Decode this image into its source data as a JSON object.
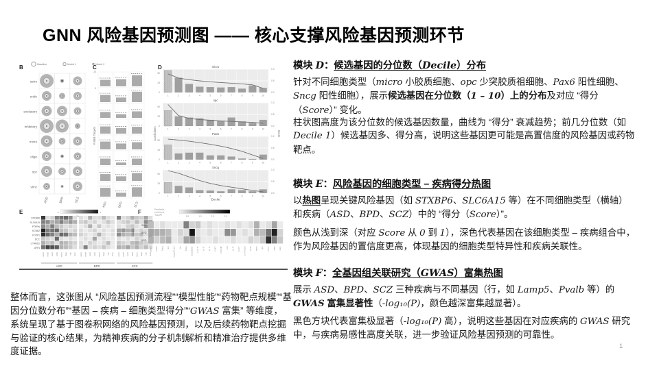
{
  "slide": {
    "title": "GNN 风险基因预测图 —— 核心支撑风险基因预测环节",
    "page_number": "1"
  },
  "modules": {
    "d": {
      "header": [
        {
          "t": "模块 "
        },
        {
          "t": "D",
          "i": true
        },
        {
          "t": "："
        },
        {
          "t": "候选基因的分位数（",
          "u": true
        },
        {
          "t": "Decile",
          "u": true,
          "i": true
        },
        {
          "t": "）分布",
          "u": true
        }
      ],
      "p1": [
        {
          "t": "针对不同细胞类型（"
        },
        {
          "t": "micro",
          "i": true
        },
        {
          "t": " 小胶质细胞、"
        },
        {
          "t": "opc",
          "i": true
        },
        {
          "t": " 少突胶质祖细胞、"
        },
        {
          "t": "Pax6",
          "i": true
        },
        {
          "t": " 阳性细胞、"
        },
        {
          "t": "Sncg",
          "i": true
        },
        {
          "t": " 阳性细胞），展示"
        },
        {
          "t": "候选基因在分位数（",
          "b": true
        },
        {
          "t": "1 – 10",
          "b": true,
          "i": true
        },
        {
          "t": "）上的分布",
          "b": true
        },
        {
          "t": "及对应 “得分（"
        },
        {
          "t": "Score",
          "i": true
        },
        {
          "t": "）” 变化。"
        }
      ],
      "p2": [
        {
          "t": "柱状图高度为该分位数的候选基因数量，曲线为 “得分” 衰减趋势；前几分位数（如 "
        },
        {
          "t": "Decile 1",
          "i": true
        },
        {
          "t": "）候选基因多、得分高，说明这些基因更可能是高置信度的风险基因或药物靶点。"
        }
      ]
    },
    "e": {
      "header": [
        {
          "t": "模块 "
        },
        {
          "t": "E",
          "i": true
        },
        {
          "t": "："
        },
        {
          "t": "风险基因的细胞类型 – 疾病得分热图",
          "u": true
        }
      ],
      "p1": [
        {
          "t": "以"
        },
        {
          "t": "热图",
          "b": true,
          "u": true
        },
        {
          "t": "呈现关键风险基因（如 "
        },
        {
          "t": "STXBP6",
          "i": true
        },
        {
          "t": "、"
        },
        {
          "t": "SLC6A15",
          "i": true
        },
        {
          "t": " 等）在不同细胞类型（横轴）和疾病（"
        },
        {
          "t": "ASD",
          "i": true
        },
        {
          "t": "、"
        },
        {
          "t": "BPD",
          "i": true
        },
        {
          "t": "、"
        },
        {
          "t": "SCZ",
          "i": true
        },
        {
          "t": "）中的 “得分（"
        },
        {
          "t": "Score",
          "i": true
        },
        {
          "t": "）”。"
        }
      ],
      "p2": [
        {
          "t": "颜色从浅到深（对应 "
        },
        {
          "t": "Score",
          "i": true
        },
        {
          "t": " 从 "
        },
        {
          "t": "0",
          "i": true
        },
        {
          "t": " 到 "
        },
        {
          "t": "1",
          "i": true
        },
        {
          "t": "），深色代表基因在该细胞类型 – 疾病组合中，作为风险基因的置信度更高，体现基因的细胞类型特异性和疾病关联性。"
        }
      ]
    },
    "f": {
      "header": [
        {
          "t": "模块 "
        },
        {
          "t": "F",
          "i": true
        },
        {
          "t": "："
        },
        {
          "t": "全基因组关联研究（",
          "u": true
        },
        {
          "t": "GWAS",
          "u": true,
          "i": true
        },
        {
          "t": "）富集热图",
          "u": true
        }
      ],
      "p1": [
        {
          "t": "展示 "
        },
        {
          "t": "ASD",
          "i": true
        },
        {
          "t": "、"
        },
        {
          "t": "BPD",
          "i": true
        },
        {
          "t": "、"
        },
        {
          "t": "SCZ",
          "i": true
        },
        {
          "t": " 三种疾病与不同基因（行，如 "
        },
        {
          "t": "Lamp5",
          "i": true
        },
        {
          "t": "、"
        },
        {
          "t": "Pvalb",
          "i": true
        },
        {
          "t": " 等）的 "
        },
        {
          "t": "GWAS",
          "b": true,
          "i": true
        },
        {
          "t": " 富集显著性",
          "b": true
        },
        {
          "t": "（"
        },
        {
          "t": "-log₁₀(P)",
          "i": true
        },
        {
          "t": "，颜色越深富集越显著）。"
        }
      ],
      "p2": [
        {
          "t": "黑色方块代表富集极显著（"
        },
        {
          "t": "-log₁₀(P)",
          "i": true
        },
        {
          "t": " 高），说明这些基因在对应疾病的 "
        },
        {
          "t": "GWAS",
          "i": true
        },
        {
          "t": " 研究中，与疾病易感性高度关联，进一步验证风险基因预测的可靠性。"
        }
      ]
    }
  },
  "summary": [
    {
      "t": "整体而言，这张图从 “风险基因预测流程”“模型性能”“药物靶点规模”“基因分位数分布”“基因 – 疾病 – 细胞类型得分”“"
    },
    {
      "t": "GWAS",
      "i": true
    },
    {
      "t": " 富集” 等维度，系统呈现了基于图卷积网络的风险基因预测，以及后续药物靶点挖掘与验证的核心结果，为精神疾病的分子机制解析和精准治疗提供多维度证据。"
    }
  ],
  "figure": {
    "panel_b": {
      "label": "B",
      "legend": [
        {
          "name": "Baseline",
          "r": 3.2
        },
        {
          "name": "Model 1",
          "r": 2.2
        },
        {
          "name": "Model 2",
          "r": 1.2
        }
      ],
      "rows": [
        "astro",
        "endo",
        "excitatory",
        "inhibitory",
        "micro",
        "oligo",
        "opc",
        "vlmc"
      ],
      "cols": [
        "ASD",
        "BPD",
        "SCZ"
      ],
      "radii": [
        [
          10,
          2.8,
          6.5
        ],
        [
          7,
          4.5,
          6
        ],
        [
          7.5,
          7.5,
          5.5
        ],
        [
          10,
          9.5,
          4
        ],
        [
          8.5,
          5,
          6.5
        ],
        [
          7,
          2.5,
          5.5
        ],
        [
          8,
          5.5,
          7
        ],
        [
          5,
          2,
          7
        ]
      ]
    },
    "panel_c": {
      "label": "C",
      "ylabel": "# BBB Targets",
      "yticks": [
        "20",
        "0"
      ],
      "cols": [
        "ASD",
        "BPD",
        "SCZ"
      ],
      "bars": [
        [
          0.5,
          0.55,
          0.85
        ],
        [
          0.55,
          0.35,
          0.8
        ],
        [
          0.45,
          0.28,
          0.5
        ],
        [
          0.55,
          0.42,
          0.52
        ],
        [
          0.6,
          0.45,
          0.55
        ],
        [
          0.5,
          0.2,
          0.5
        ],
        [
          0.52,
          0.35,
          0.6
        ],
        [
          0.68,
          0.3,
          0.72
        ]
      ]
    },
    "panel_d": {
      "label": "D",
      "xlabel": "Decile",
      "ylabel_left": "Candidates",
      "ylabel_right": "Score",
      "xticks": [
        "1",
        "2",
        "3",
        "4",
        "5",
        "6",
        "7",
        "8",
        "9",
        "10"
      ],
      "yticks_left": [
        "50",
        "25",
        "0"
      ],
      "yticks_right": [
        "1.0",
        "0.5",
        "0.0"
      ],
      "subplots": [
        {
          "title": "micro",
          "candidates": [
            57,
            38,
            22,
            15,
            14,
            13,
            14,
            10,
            18,
            12
          ],
          "score": [
            0.8,
            0.62,
            0.55,
            0.5,
            0.46,
            0.43,
            0.4,
            0.37,
            0.33,
            0.18
          ]
        },
        {
          "title": "opc",
          "candidates": [
            40,
            25,
            22,
            20,
            16,
            13,
            22,
            12,
            8,
            16
          ],
          "score": [
            0.93,
            0.45,
            0.33,
            0.28,
            0.25,
            0.22,
            0.2,
            0.18,
            0.16,
            0.12
          ]
        },
        {
          "title": "Pax6",
          "candidates": [
            38,
            16,
            18,
            18,
            11,
            11,
            8,
            3,
            2,
            13
          ],
          "score": [
            0.88,
            0.84,
            0.79,
            0.73,
            0.66,
            0.58,
            0.48,
            0.36,
            0.2,
            0.05
          ]
        },
        {
          "title": "Sncg",
          "candidates": [
            28,
            19,
            15,
            8,
            7,
            5,
            10,
            8,
            5,
            10
          ],
          "score": [
            0.97,
            0.86,
            0.7,
            0.54,
            0.42,
            0.33,
            0.26,
            0.19,
            0.12,
            0.06
          ]
        }
      ]
    },
    "panel_e": {
      "label": "E",
      "colorbar": {
        "label": "Score",
        "min": "0",
        "max": "1"
      },
      "genes": [
        "STXBP6",
        "SLC6A15",
        "PTPRN",
        "KCNB2",
        "FOXP1",
        "DCC",
        "CTNND2",
        "AFF4"
      ],
      "groups": [
        "ASD",
        "BPD",
        "SCZ"
      ],
      "celltypes": [
        "astro",
        "endo",
        "excit",
        "inhib",
        "micro",
        "oligo",
        "opc",
        "vlmc"
      ],
      "values": [
        [
          0.8,
          0.1,
          0.15,
          0.5,
          0.55,
          0.6,
          0.45,
          0.1,
          0.1,
          0.05,
          0.3,
          0.1,
          0.1,
          0.25,
          0.1,
          0.05,
          0.5,
          0.1,
          0.15,
          0.3,
          0.2,
          0.15,
          0.35,
          0.1
        ],
        [
          0.5,
          0.45,
          0.3,
          0.35,
          0.5,
          0.3,
          0.4,
          0.3,
          0.15,
          0.2,
          0.1,
          0.15,
          0.05,
          0.1,
          0.2,
          0.1,
          0.1,
          0.15,
          0.2,
          0.1,
          0.25,
          0.1,
          0.45,
          0.35
        ],
        [
          0.45,
          0.3,
          0.5,
          0.25,
          0.2,
          0.1,
          0.15,
          0.1,
          0.05,
          0.1,
          0.3,
          0.05,
          0.2,
          0.05,
          0.1,
          0.05,
          0.1,
          0.05,
          0.15,
          0.2,
          0.1,
          0.05,
          0.4,
          0.3
        ],
        [
          0.9,
          0.5,
          0.55,
          0.6,
          0.25,
          0.2,
          0.1,
          0.15,
          0.1,
          0.05,
          0.1,
          0.15,
          0.05,
          0.1,
          0.05,
          0.1,
          0.35,
          0.4,
          0.3,
          0.35,
          0.1,
          0.15,
          0.1,
          0.05
        ],
        [
          0.85,
          0.6,
          0.5,
          0.3,
          0.6,
          0.55,
          0.3,
          0.25,
          0.15,
          0.1,
          0.05,
          0.1,
          0.3,
          0.1,
          0.05,
          0.1,
          0.45,
          0.3,
          0.25,
          0.3,
          0.2,
          0.25,
          0.1,
          0.45
        ],
        [
          0.2,
          0.15,
          0.1,
          0.6,
          0.1,
          0.05,
          0.1,
          0.05,
          0.05,
          0.1,
          0.05,
          0.35,
          0.05,
          0.1,
          0.05,
          0.05,
          0.1,
          0.05,
          0.1,
          0.05,
          0.15,
          0.1,
          0.05,
          0.5
        ],
        [
          0.3,
          0.2,
          0.25,
          0.1,
          0.3,
          0.25,
          0.2,
          0.15,
          0.1,
          0.05,
          0.15,
          0.1,
          0.05,
          0.1,
          0.25,
          0.05,
          0.2,
          0.15,
          0.1,
          0.25,
          0.3,
          0.2,
          0.15,
          0.1
        ],
        [
          0.55,
          0.75,
          0.7,
          0.65,
          0.3,
          0.25,
          0.2,
          0.1,
          0.1,
          0.5,
          0.1,
          0.15,
          0.1,
          0.2,
          0.1,
          0.05,
          0.3,
          0.25,
          0.35,
          0.2,
          0.3,
          0.15,
          0.25,
          0.1
        ]
      ]
    },
    "panel_f": {
      "label": "F",
      "legend_lines": [
        "First decile",
        "enrichment",
        "-log₁₀(P)"
      ],
      "colorbar_ticks": [
        "0.5",
        "1.0",
        "1.5",
        "2.0"
      ],
      "ylabel": "GWAS",
      "rows": [
        "SCZ",
        "BPD",
        "ASD"
      ],
      "cols": [
        "Lamp5",
        "Pvalb",
        "Sncg",
        "Sst",
        "Lamp5 Lhx6",
        "Vip",
        "Pax6",
        "Chandelier",
        "L2/3 IT",
        "L4 IT",
        "L5 IT",
        "L5 ET",
        "L5/6 NP",
        "L6b",
        "L6 IT",
        "L6 CT",
        "L6 IT Car3",
        "endo",
        "astro",
        "opc",
        "micro",
        "oligo",
        "vlmc"
      ],
      "values": [
        [
          0.25,
          0.05,
          0.1,
          0.05,
          0.05,
          0.05,
          0.5,
          0.15,
          0.2,
          0.05,
          0.1,
          0.05,
          0.05,
          0.1,
          0.05,
          0.1,
          0.05,
          0.1,
          0.3,
          0.05,
          0.1,
          0.35,
          0.05
        ],
        [
          0.35,
          0.3,
          0.3,
          0.25,
          0.05,
          0.15,
          0.1,
          0.95,
          0.1,
          0.05,
          0.1,
          0.05,
          0.05,
          0.45,
          0.4,
          0.05,
          0.1,
          0.05,
          0.3,
          0.25,
          0.55,
          0.9,
          0.15
        ],
        [
          0.3,
          0.15,
          0.25,
          0.3,
          0.05,
          0.1,
          0.35,
          0.4,
          0.15,
          0.05,
          0.05,
          0.1,
          0.05,
          0.05,
          0.1,
          0.05,
          0.05,
          0.15,
          0.1,
          0.2,
          0.85,
          0.5,
          0.2
        ]
      ]
    }
  }
}
